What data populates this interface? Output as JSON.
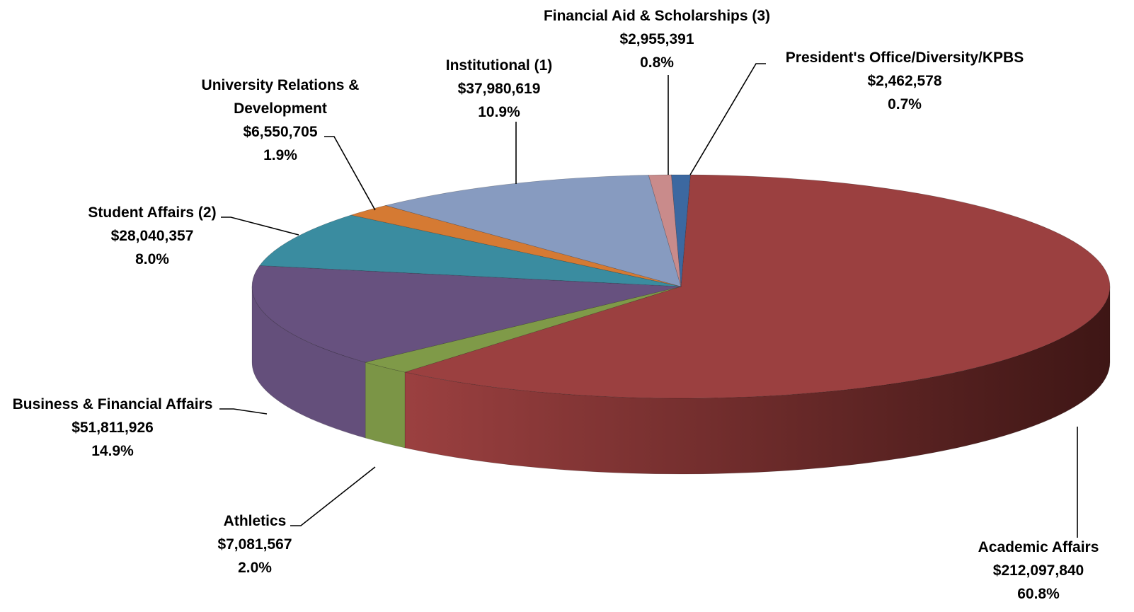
{
  "chart_data": {
    "type": "pie",
    "style": "3d",
    "slices": [
      {
        "name": "Academic Affairs",
        "value": 212097840,
        "value_label": "$212,097,840",
        "percent_label": "60.8%",
        "color": "#9B4040"
      },
      {
        "name": "Athletics",
        "value": 7081567,
        "value_label": "$7,081,567",
        "percent_label": "2.0%",
        "color": "#7F9A48"
      },
      {
        "name": "Business & Financial Affairs",
        "value": 51811926,
        "value_label": "$51,811,926",
        "percent_label": "14.9%",
        "color": "#67517F"
      },
      {
        "name": "Student Affairs (2)",
        "value": 28040357,
        "value_label": "$28,040,357",
        "percent_label": "8.0%",
        "color": "#3A8CA0"
      },
      {
        "name": "University Relations &",
        "name_line2": "Development",
        "value": 6550705,
        "value_label": "$6,550,705",
        "percent_label": "1.9%",
        "color": "#D57A33"
      },
      {
        "name": "Institutional (1)",
        "value": 37980619,
        "value_label": "$37,980,619",
        "percent_label": "10.9%",
        "color": "#879BC0"
      },
      {
        "name": "Financial Aid & Scholarships (3)",
        "value": 2955391,
        "value_label": "$2,955,391",
        "percent_label": "0.8%",
        "color": "#C98B8B"
      },
      {
        "name": "President's Office/Diversity/KPBS",
        "value": 2462578,
        "value_label": "$2,462,578",
        "percent_label": "0.7%",
        "color": "#3C68A0"
      }
    ]
  }
}
